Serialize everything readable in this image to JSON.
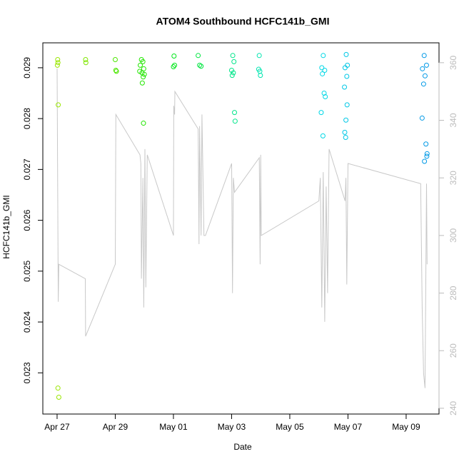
{
  "chart_data": {
    "type": "scatter",
    "title": "ATOM4 Southbound HCFC141b_GMI",
    "x_label": "Date",
    "y_label": "HCFC141b_GMI",
    "xlim": [
      -0.49,
      13.13
    ],
    "xticks": [
      {
        "value": 0,
        "label": "Apr 27"
      },
      {
        "value": 2,
        "label": "Apr 29"
      },
      {
        "value": 4,
        "label": "May 01"
      },
      {
        "value": 6,
        "label": "May 03"
      },
      {
        "value": 8,
        "label": "May 05"
      },
      {
        "value": 10,
        "label": "May 07"
      },
      {
        "value": 12,
        "label": "May 09"
      }
    ],
    "ylim": [
      0.02219,
      0.02949
    ],
    "yticks": [
      0.023,
      0.024,
      0.025,
      0.026,
      0.027,
      0.028,
      0.029
    ],
    "y2lim": [
      238,
      366.9
    ],
    "y2ticks": [
      240,
      260,
      280,
      300,
      320,
      340,
      360
    ],
    "series": [
      {
        "color": "#99e600",
        "x": [
          0.02,
          0.03,
          0.01,
          0.04,
          0.03,
          0.06
        ],
        "values": [
          0.02916,
          0.0291,
          0.02905,
          0.02827,
          0.0227,
          0.02252
        ]
      },
      {
        "color": "#7fe600",
        "x": [
          0.98,
          0.99
        ],
        "values": [
          0.02916,
          0.0291
        ]
      },
      {
        "color": "#4ce600",
        "x": [
          2.0,
          2.02,
          2.04
        ],
        "values": [
          0.02916,
          0.02895,
          0.02893
        ]
      },
      {
        "color": "#22e600",
        "x": [
          2.9,
          2.95,
          2.86,
          2.98,
          2.84,
          2.92,
          3.0,
          2.96,
          2.93,
          2.97
        ],
        "values": [
          0.02916,
          0.02912,
          0.02905,
          0.02898,
          0.02893,
          0.0289,
          0.02887,
          0.02882,
          0.0287,
          0.02791
        ]
      },
      {
        "color": "#00e61a",
        "x": [
          4.02,
          4.04,
          4.0
        ],
        "values": [
          0.02923,
          0.02905,
          0.02902
        ]
      },
      {
        "color": "#00e640",
        "x": [
          4.85,
          4.9,
          4.95
        ],
        "values": [
          0.02924,
          0.02905,
          0.02903
        ]
      },
      {
        "color": "#00e68a",
        "x": [
          6.04,
          6.08,
          6.0,
          6.06,
          6.02,
          6.1,
          6.12
        ],
        "values": [
          0.02924,
          0.02912,
          0.02895,
          0.0289,
          0.02885,
          0.02812,
          0.02795
        ]
      },
      {
        "color": "#00e6b0",
        "x": [
          6.95,
          6.93,
          6.97,
          6.99
        ],
        "values": [
          0.02924,
          0.02897,
          0.02893,
          0.02885
        ]
      },
      {
        "color": "#00d8e6",
        "x": [
          9.15,
          9.1,
          9.2,
          9.12,
          9.18,
          9.22,
          9.08,
          9.14
        ],
        "values": [
          0.02924,
          0.029,
          0.02895,
          0.02888,
          0.0285,
          0.02843,
          0.02812,
          0.02766
        ]
      },
      {
        "color": "#00c8e6",
        "x": [
          9.94,
          9.98,
          9.9,
          9.96,
          9.88,
          9.97,
          9.93,
          9.89,
          9.92
        ],
        "values": [
          0.02926,
          0.02905,
          0.029,
          0.02883,
          0.02862,
          0.02827,
          0.02797,
          0.02773,
          0.02763
        ]
      },
      {
        "color": "#0099e6",
        "x": [
          12.62,
          12.7,
          12.56,
          12.65,
          12.6,
          12.55,
          12.68,
          12.72,
          12.71,
          12.63
        ],
        "values": [
          0.02924,
          0.02905,
          0.02898,
          0.02884,
          0.02868,
          0.02801,
          0.0275,
          0.02731,
          0.02726,
          0.02716
        ]
      }
    ],
    "line": {
      "color": "#c8c8c8",
      "axis": "y2",
      "x": [
        0,
        0.04,
        0.06,
        0.97,
        0.98,
        2.0,
        2.02,
        2.85,
        2.88,
        2.9,
        2.95,
        2.98,
        3.02,
        3.05,
        3.1,
        4.0,
        4.01,
        4.04,
        4.05,
        4.85,
        4.88,
        4.9,
        4.95,
        4.98,
        5.05,
        5.1,
        6.0,
        6.03,
        6.06,
        6.1,
        6.95,
        6.98,
        7.0,
        7.02,
        9.0,
        9.05,
        9.1,
        9.15,
        9.2,
        9.25,
        9.3,
        9.35,
        9.9,
        9.93,
        9.96,
        10.0,
        12.5,
        12.55,
        12.6,
        12.65,
        12.7,
        12.72
      ],
      "values": [
        358,
        277,
        290,
        285,
        265,
        290,
        342,
        328,
        325,
        285,
        320,
        275,
        330,
        282,
        328,
        300,
        345,
        342,
        350,
        337,
        297,
        338,
        300,
        342,
        300,
        300,
        325,
        280,
        320,
        315,
        327,
        290,
        328,
        300,
        312,
        320,
        275,
        322,
        270,
        317,
        280,
        330,
        312,
        320,
        283,
        325,
        318,
        275,
        252,
        247,
        318,
        290
      ]
    }
  }
}
